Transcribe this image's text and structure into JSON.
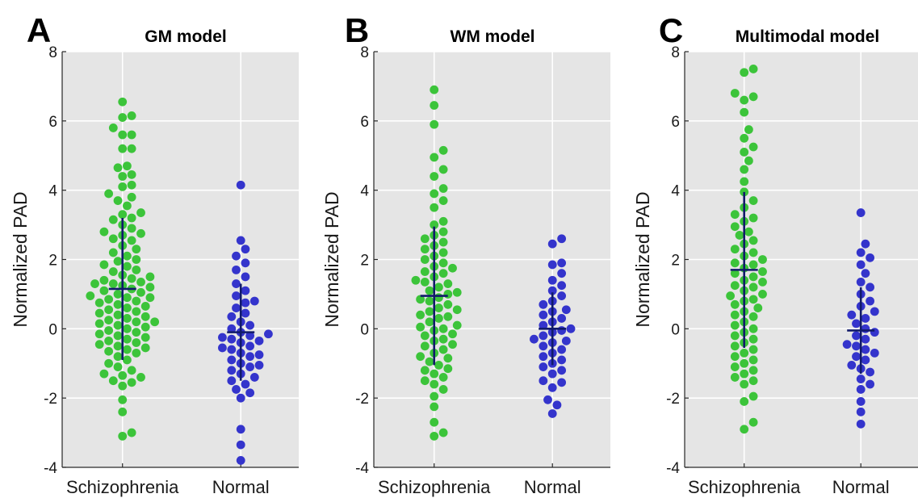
{
  "chart_data": [
    {
      "type": "scatter",
      "panel_label": "A",
      "title": "GM model",
      "ylabel": "Normalized PAD",
      "ylim": [
        -4,
        8
      ],
      "yticks": [
        "-4",
        "-2",
        "0",
        "2",
        "4",
        "6",
        "8"
      ],
      "categories": [
        "Schizophrenia",
        "Normal"
      ],
      "grid": true,
      "series": [
        {
          "category": "Schizophrenia",
          "color": "#3cc43a",
          "mean": 1.15,
          "sd": 2.05,
          "values": [
            6.55,
            6.15,
            6.1,
            5.8,
            5.6,
            5.6,
            5.2,
            5.2,
            4.7,
            4.65,
            4.45,
            4.4,
            4.15,
            4.1,
            3.9,
            3.8,
            3.7,
            3.55,
            3.35,
            3.3,
            3.2,
            3.15,
            3.0,
            2.9,
            2.8,
            2.75,
            2.7,
            2.6,
            2.55,
            2.4,
            2.3,
            2.2,
            2.1,
            2.0,
            1.95,
            1.85,
            1.8,
            1.7,
            1.65,
            1.55,
            1.5,
            1.45,
            1.4,
            1.35,
            1.3,
            1.3,
            1.25,
            1.2,
            1.15,
            1.1,
            1.05,
            1.0,
            0.95,
            0.9,
            0.9,
            0.85,
            0.8,
            0.75,
            0.7,
            0.65,
            0.6,
            0.55,
            0.5,
            0.45,
            0.4,
            0.35,
            0.3,
            0.25,
            0.2,
            0.2,
            0.15,
            0.1,
            0.05,
            0.0,
            -0.05,
            -0.1,
            -0.15,
            -0.2,
            -0.25,
            -0.3,
            -0.35,
            -0.4,
            -0.45,
            -0.5,
            -0.55,
            -0.6,
            -0.65,
            -0.7,
            -0.8,
            -0.9,
            -1.0,
            -1.1,
            -1.2,
            -1.3,
            -1.35,
            -1.4,
            -1.5,
            -1.55,
            -1.65,
            -2.05,
            -2.4,
            -3.0,
            -3.1
          ]
        },
        {
          "category": "Normal",
          "color": "#3434cc",
          "mean": -0.1,
          "sd": 1.4,
          "values": [
            4.15,
            2.55,
            2.3,
            2.1,
            1.9,
            1.7,
            1.5,
            1.3,
            1.1,
            0.95,
            0.8,
            0.75,
            0.6,
            0.45,
            0.35,
            0.2,
            0.1,
            0.0,
            -0.1,
            -0.15,
            -0.2,
            -0.25,
            -0.3,
            -0.35,
            -0.4,
            -0.5,
            -0.55,
            -0.6,
            -0.7,
            -0.75,
            -0.8,
            -0.9,
            -1.0,
            -1.05,
            -1.1,
            -1.2,
            -1.3,
            -1.4,
            -1.5,
            -1.6,
            -1.75,
            -1.85,
            -2.0,
            -2.9,
            -3.35,
            -3.8
          ]
        }
      ]
    },
    {
      "type": "scatter",
      "panel_label": "B",
      "title": "WM model",
      "ylabel": "Normalized PAD",
      "ylim": [
        -4,
        8
      ],
      "yticks": [
        "-4",
        "-2",
        "0",
        "2",
        "4",
        "6",
        "8"
      ],
      "categories": [
        "Schizophrenia",
        "Normal"
      ],
      "grid": true,
      "series": [
        {
          "category": "Schizophrenia",
          "color": "#3cc43a",
          "mean": 0.95,
          "sd": 2.0,
          "values": [
            6.9,
            6.45,
            5.9,
            5.15,
            4.95,
            4.6,
            4.4,
            4.05,
            3.9,
            3.7,
            3.5,
            3.1,
            3.0,
            2.8,
            2.7,
            2.6,
            2.5,
            2.4,
            2.3,
            2.2,
            2.1,
            2.0,
            1.9,
            1.8,
            1.75,
            1.65,
            1.6,
            1.5,
            1.4,
            1.35,
            1.3,
            1.2,
            1.1,
            1.05,
            1.0,
            0.9,
            0.85,
            0.8,
            0.7,
            0.6,
            0.55,
            0.5,
            0.4,
            0.35,
            0.3,
            0.2,
            0.1,
            0.05,
            0.0,
            -0.05,
            -0.15,
            -0.2,
            -0.3,
            -0.35,
            -0.45,
            -0.5,
            -0.6,
            -0.7,
            -0.8,
            -0.85,
            -0.95,
            -1.05,
            -1.15,
            -1.2,
            -1.3,
            -1.4,
            -1.5,
            -1.6,
            -1.75,
            -1.95,
            -2.25,
            -2.7,
            -3.0,
            -3.1
          ]
        },
        {
          "category": "Normal",
          "color": "#3434cc",
          "mean": 0.0,
          "sd": 1.05,
          "values": [
            2.6,
            2.45,
            1.9,
            1.85,
            1.6,
            1.4,
            1.25,
            1.1,
            0.95,
            0.8,
            0.7,
            0.55,
            0.5,
            0.4,
            0.3,
            0.2,
            0.1,
            0.0,
            -0.05,
            -0.1,
            -0.2,
            -0.3,
            -0.35,
            -0.4,
            -0.5,
            -0.6,
            -0.7,
            -0.8,
            -0.9,
            -1.0,
            -1.1,
            -1.2,
            -1.3,
            -1.5,
            -1.55,
            -1.7,
            -2.05,
            -2.2,
            -2.45
          ]
        }
      ]
    },
    {
      "type": "scatter",
      "panel_label": "C",
      "title": "Multimodal model",
      "ylabel": "Normalized PAD",
      "ylim": [
        -4,
        8
      ],
      "yticks": [
        "-4",
        "-2",
        "0",
        "2",
        "4",
        "6",
        "8"
      ],
      "categories": [
        "Schizophrenia",
        "Normal"
      ],
      "grid": true,
      "series": [
        {
          "category": "Schizophrenia",
          "color": "#3cc43a",
          "mean": 1.7,
          "sd": 2.25,
          "values": [
            7.5,
            7.4,
            6.8,
            6.7,
            6.6,
            6.25,
            5.75,
            5.5,
            5.25,
            5.1,
            4.85,
            4.6,
            4.25,
            3.95,
            3.7,
            3.5,
            3.3,
            3.2,
            3.1,
            2.95,
            2.8,
            2.7,
            2.55,
            2.45,
            2.3,
            2.2,
            2.1,
            2.0,
            1.9,
            1.85,
            1.75,
            1.65,
            1.6,
            1.5,
            1.4,
            1.35,
            1.25,
            1.2,
            1.1,
            1.0,
            0.95,
            0.85,
            0.8,
            0.7,
            0.6,
            0.5,
            0.4,
            0.35,
            0.2,
            0.1,
            0.0,
            -0.1,
            -0.2,
            -0.3,
            -0.4,
            -0.5,
            -0.6,
            -0.7,
            -0.8,
            -0.9,
            -1.0,
            -1.1,
            -1.2,
            -1.3,
            -1.4,
            -1.5,
            -1.6,
            -1.95,
            -2.1,
            -2.7,
            -2.9
          ]
        },
        {
          "category": "Normal",
          "color": "#3434cc",
          "mean": -0.05,
          "sd": 1.25,
          "values": [
            3.35,
            2.45,
            2.2,
            2.05,
            1.85,
            1.6,
            1.35,
            1.2,
            1.0,
            0.8,
            0.65,
            0.5,
            0.4,
            0.3,
            0.15,
            0.0,
            -0.1,
            -0.2,
            -0.3,
            -0.45,
            -0.5,
            -0.6,
            -0.7,
            -0.8,
            -0.9,
            -1.05,
            -1.15,
            -1.25,
            -1.45,
            -1.6,
            -1.75,
            -2.1,
            -2.4,
            -2.75
          ]
        }
      ]
    }
  ]
}
